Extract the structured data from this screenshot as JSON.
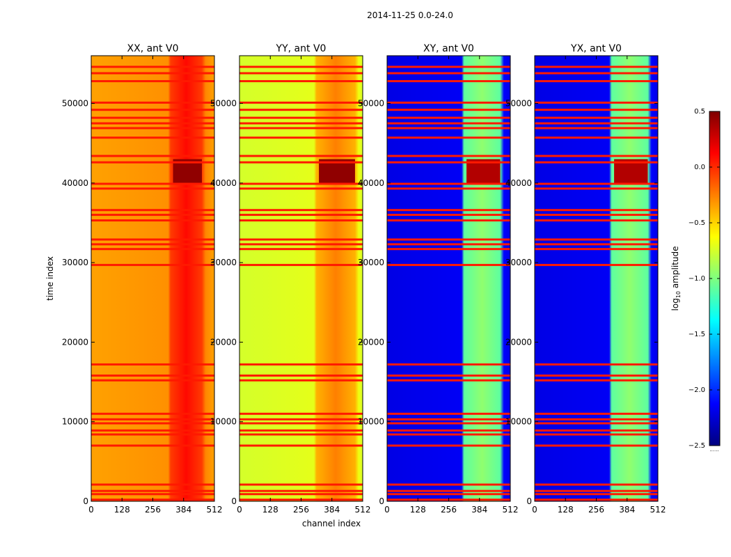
{
  "suptitle": "2014-11-25 0.0-24.0",
  "colorbar": {
    "label_prefix": "log",
    "label_sub": "10",
    "label_suffix": " amplitude",
    "range": [
      -2.5,
      0.5
    ],
    "ticks": [
      "0.5",
      "0.0",
      "−0.5",
      "−1.0",
      "−1.5",
      "−2.0",
      "−2.5"
    ],
    "tick_values": [
      0.5,
      0.0,
      -0.5,
      -1.0,
      -1.5,
      -2.0,
      -2.5
    ],
    "footnote": "......",
    "stops": [
      "#00007f",
      "#0000ff",
      "#007fff",
      "#00ffff",
      "#7fff7f",
      "#ffff00",
      "#ff7f00",
      "#ff0000",
      "#7f0000"
    ]
  },
  "chart_data": {
    "type": "heatmap",
    "xlabel": "channel index",
    "ylabel": "time index",
    "xlim": [
      0,
      512
    ],
    "ylim": [
      0,
      56000
    ],
    "x_ticks": [
      0,
      128,
      256,
      384,
      512
    ],
    "y_ticks": [
      0,
      10000,
      20000,
      30000,
      40000,
      50000
    ],
    "flagged_time_rows": [
      200,
      900,
      1300,
      2100,
      7000,
      8400,
      8900,
      9800,
      10300,
      11000,
      15200,
      15800,
      17200,
      29700,
      31700,
      32300,
      32900,
      35300,
      36000,
      36600,
      39300,
      39900,
      42600,
      43400,
      45700,
      46900,
      47500,
      48200,
      49200,
      50100,
      52800,
      53800,
      54600
    ],
    "panels": [
      {
        "title": "XX, ant V0",
        "base_log": -0.35,
        "band_channels": [
          330,
          460
        ],
        "band_log": -0.05,
        "hot_time_range": [
          40000,
          43000
        ],
        "hot_log": 0.45
      },
      {
        "title": "YY, ant V0",
        "base_log": -0.75,
        "band_channels": [
          320,
          480
        ],
        "band_log": -0.4,
        "hot_time_range": [
          40000,
          43000
        ],
        "hot_log": 0.45
      },
      {
        "title": "XY, ant V0",
        "base_log": -2.2,
        "band_channels": [
          320,
          470
        ],
        "band_log": -1.1,
        "hot_time_range": [
          40000,
          43000
        ],
        "hot_log": 0.35
      },
      {
        "title": "YX, ant V0",
        "base_log": -2.2,
        "band_channels": [
          320,
          470
        ],
        "band_log": -1.1,
        "hot_time_range": [
          40000,
          43000
        ],
        "hot_log": 0.35
      }
    ]
  }
}
